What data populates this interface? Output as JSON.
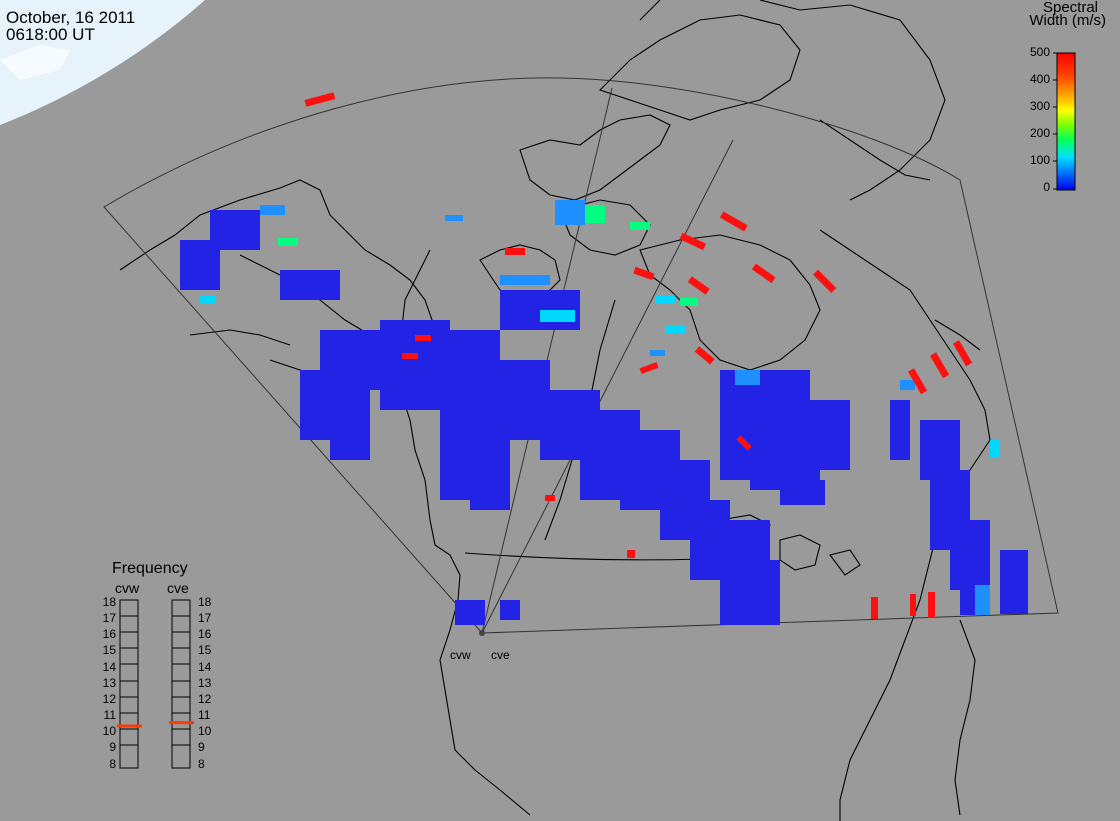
{
  "header": {
    "date": "October, 16 2011",
    "time": "0618:00 UT"
  },
  "colorbar": {
    "title_line1": "Spectral",
    "title_line2": "Width (m/s)",
    "ticks": [
      "500",
      "400",
      "300",
      "200",
      "100",
      "0"
    ],
    "stops": [
      "#0000ee",
      "#0080ff",
      "#00e0ff",
      "#00ff60",
      "#80ff00",
      "#ffff00",
      "#ffa000",
      "#ff4000",
      "#ff0000"
    ]
  },
  "frequency_panel": {
    "title": "Frequency",
    "radar_left": "cvw",
    "radar_right": "cve",
    "levels": [
      "18",
      "17",
      "16",
      "15",
      "14",
      "13",
      "12",
      "11",
      "10",
      "9",
      "8"
    ],
    "cvw_value": 10.5,
    "cve_value": 10.7
  },
  "sites": {
    "west": "cvw",
    "east": "cve"
  },
  "colors": {
    "background": "#9a9a9a",
    "land_line": "#000000",
    "fov_line": "#333333",
    "indicator": "#ff3a00"
  }
}
